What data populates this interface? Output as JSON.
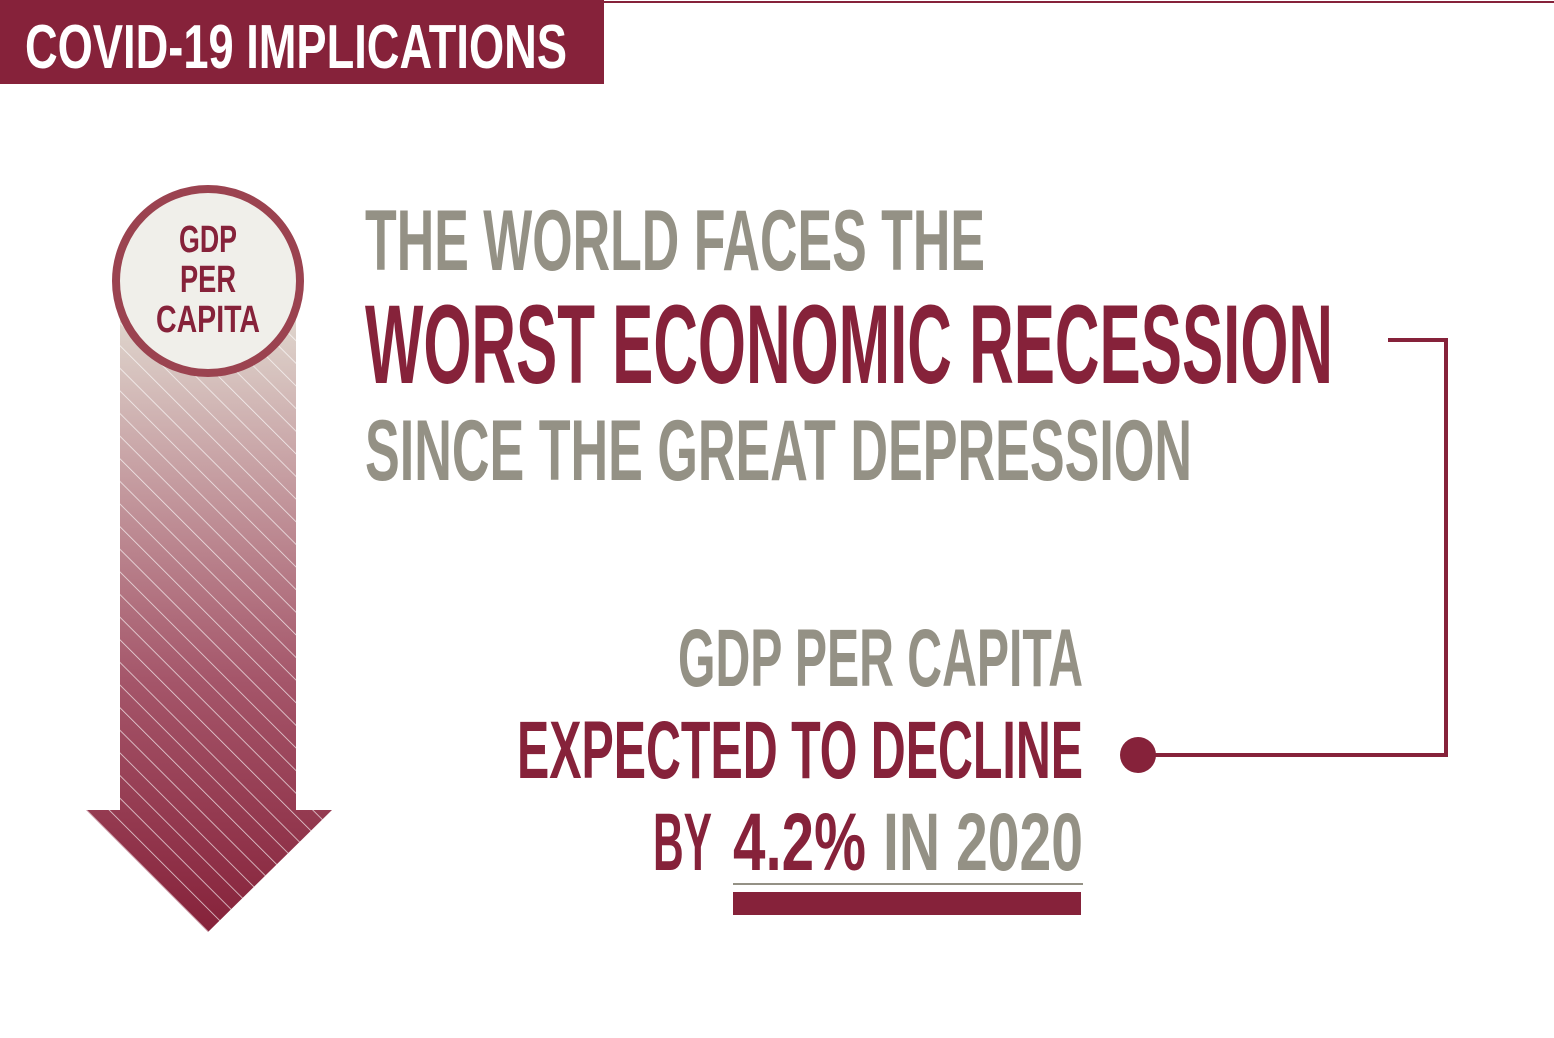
{
  "header": {
    "title": "COVID-19 IMPLICATIONS"
  },
  "badge": {
    "lines": [
      "GDP",
      "PER",
      "CAPITA"
    ]
  },
  "headline": {
    "lines": [
      "THE WORLD FACES THE",
      "WORST ECONOMIC RECESSION",
      "SINCE THE GREAT DEPRESSION"
    ]
  },
  "stat": {
    "lines": [
      "GDP PER CAPITA",
      "EXPECTED TO DECLINE"
    ],
    "last_line": [
      "BY",
      "4.2%",
      "IN 2020"
    ]
  }
}
